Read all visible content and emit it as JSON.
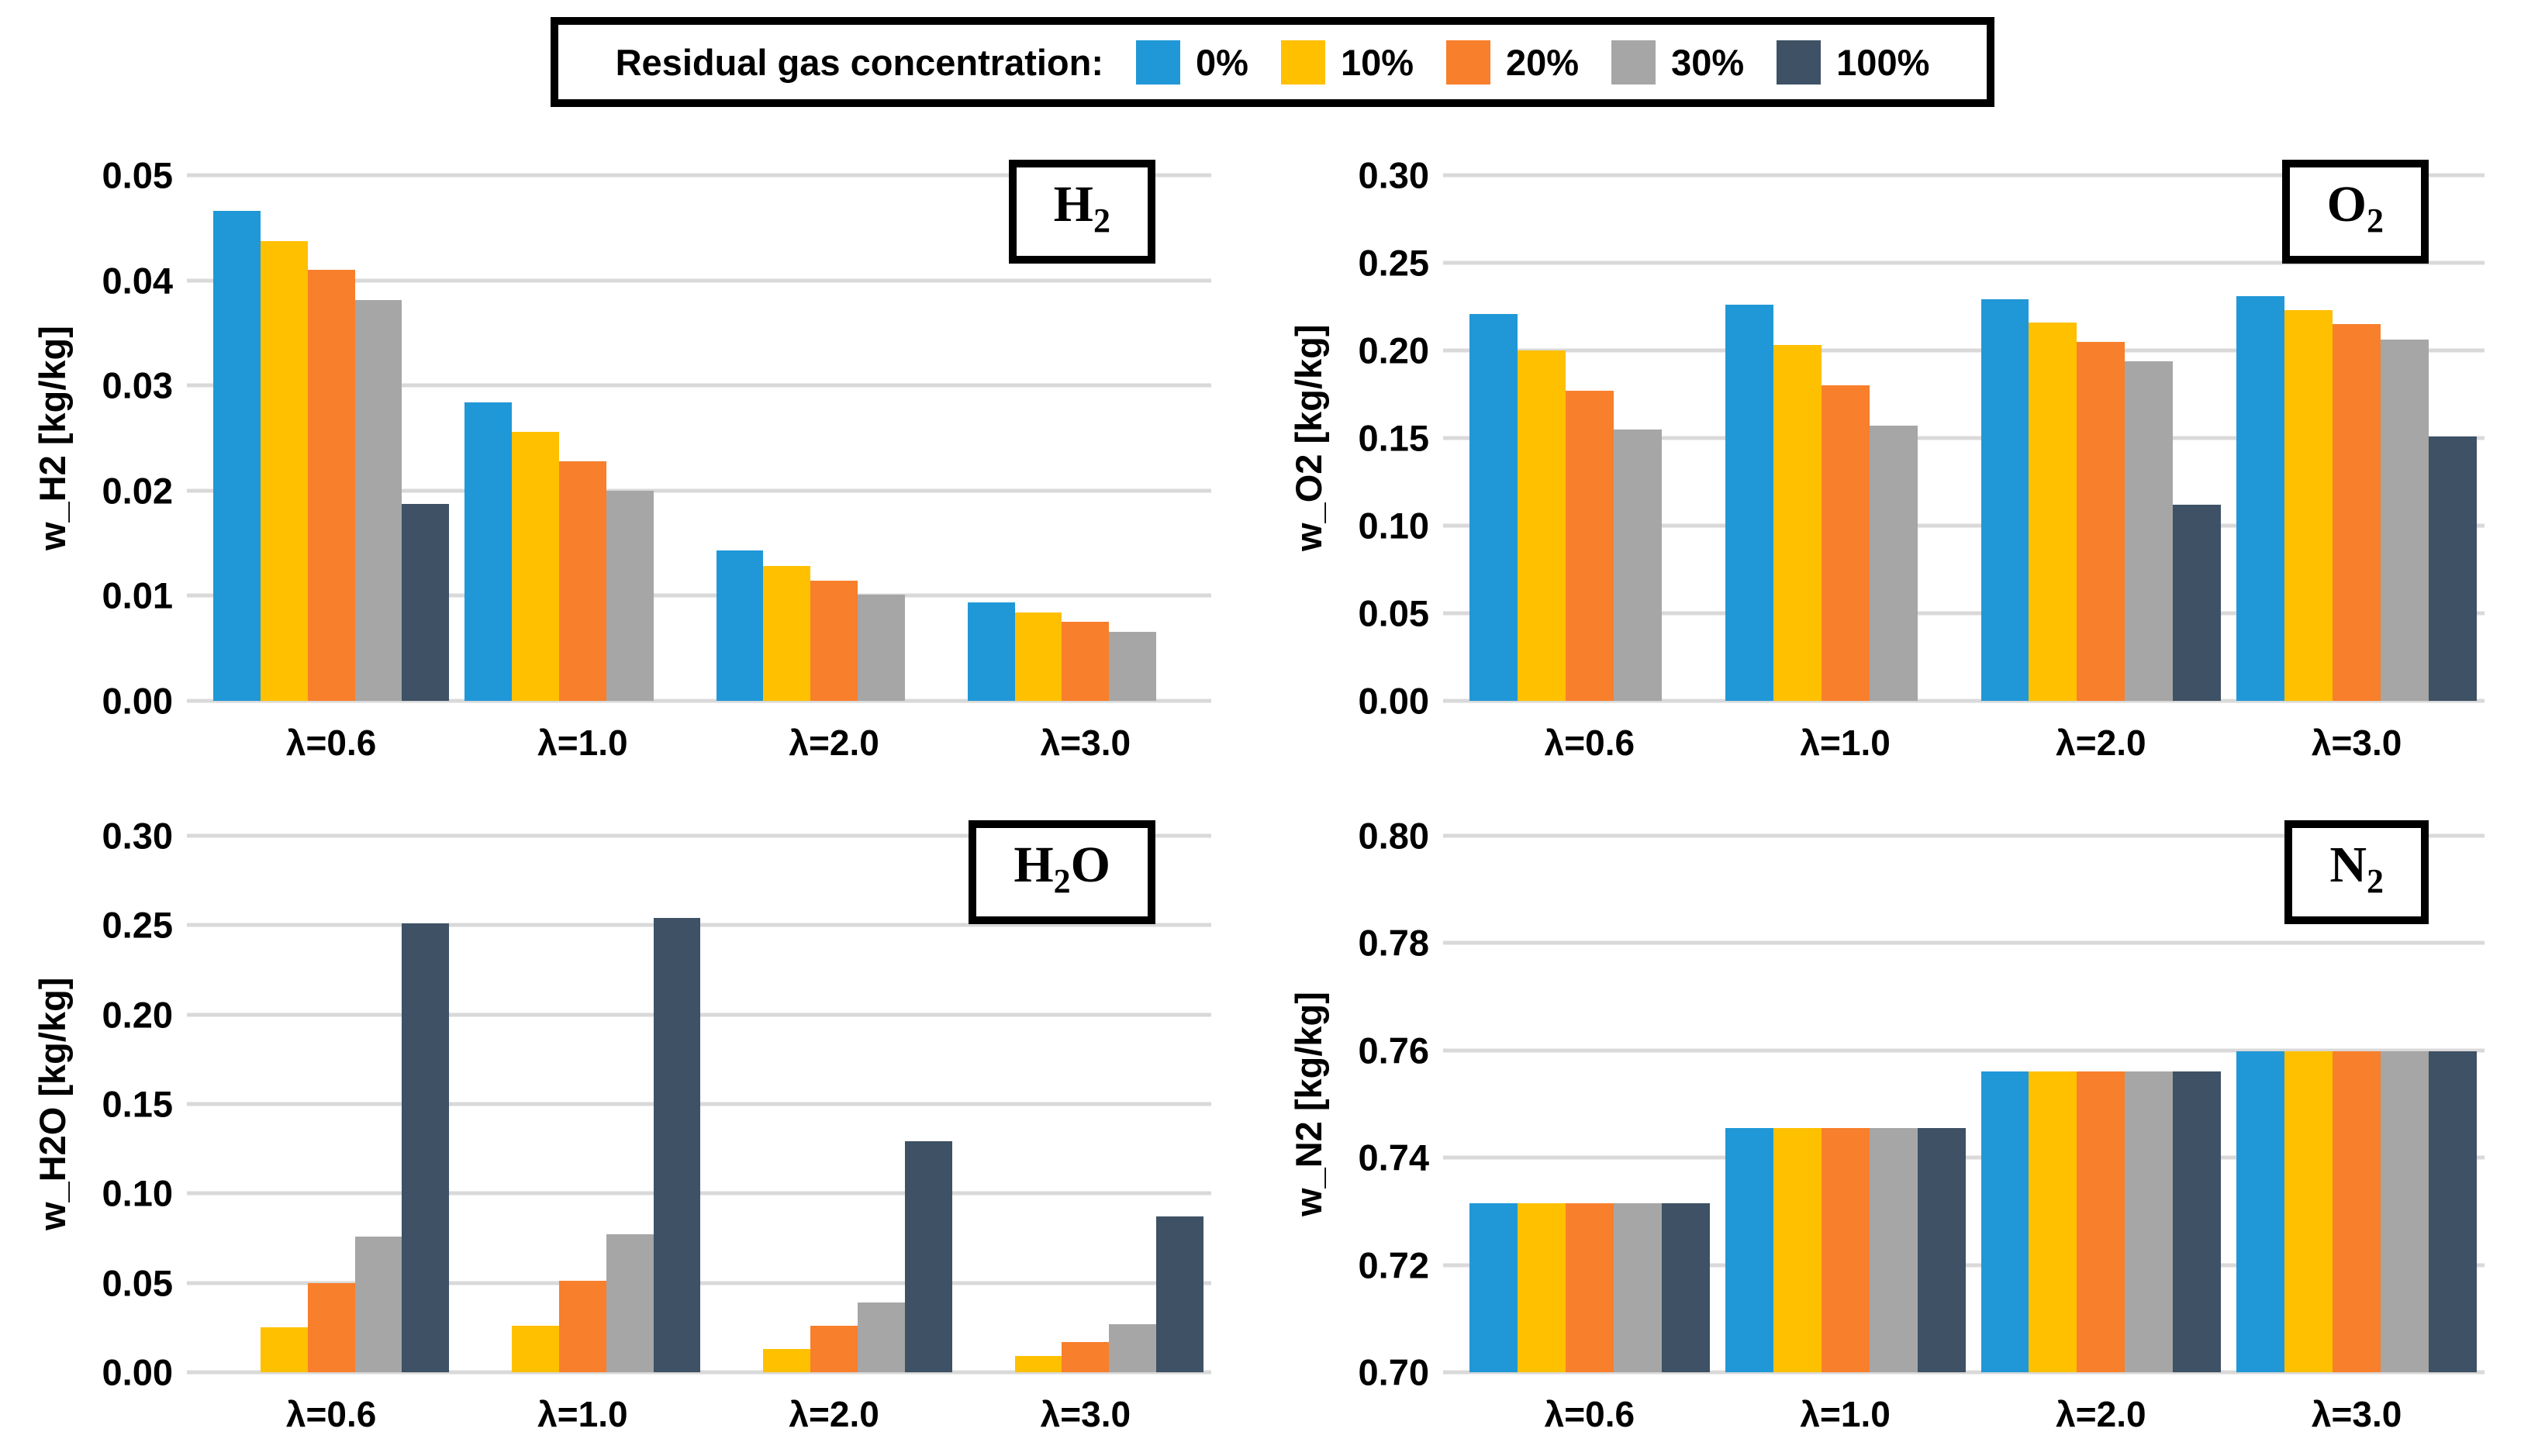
{
  "legend": {
    "title": "Residual gas concentration:",
    "items": [
      {
        "label": "0%",
        "color": "#2098D7"
      },
      {
        "label": "10%",
        "color": "#FFC000"
      },
      {
        "label": "20%",
        "color": "#F87F2C"
      },
      {
        "label": "30%",
        "color": "#A6A6A6"
      },
      {
        "label": "100%",
        "color": "#3E5165"
      }
    ]
  },
  "categories": [
    "λ=0.6",
    "λ=1.0",
    "λ=2.0",
    "λ=3.0"
  ],
  "colors": {
    "gridline": "#D9D9D9",
    "text": "#000000",
    "background": "#FFFFFF"
  },
  "chart_data": [
    {
      "type": "bar",
      "title": "H2",
      "title_parts": {
        "base": "H",
        "sub": "2",
        "suffix": ""
      },
      "ylabel": "w_H2 [kg/kg]",
      "ylim": [
        0,
        0.05
      ],
      "ytick_step": 0.01,
      "ytick_decimals": 2,
      "grid": true,
      "legend_position": "top-shared",
      "categories": [
        "λ=0.6",
        "λ=1.0",
        "λ=2.0",
        "λ=3.0"
      ],
      "series": [
        {
          "name": "0%",
          "values": [
            0.0466,
            0.0284,
            0.0143,
            0.0094
          ]
        },
        {
          "name": "10%",
          "values": [
            0.0437,
            0.0256,
            0.0128,
            0.0084
          ]
        },
        {
          "name": "20%",
          "values": [
            0.041,
            0.0228,
            0.0114,
            0.0075
          ]
        },
        {
          "name": "30%",
          "values": [
            0.0381,
            0.02,
            0.0101,
            0.0066
          ]
        },
        {
          "name": "100%",
          "values": [
            0.0187,
            0,
            0,
            0
          ]
        }
      ]
    },
    {
      "type": "bar",
      "title": "O2",
      "title_parts": {
        "base": "O",
        "sub": "2",
        "suffix": ""
      },
      "ylabel": "w_O2 [kg/kg]",
      "ylim": [
        0,
        0.3
      ],
      "ytick_step": 0.05,
      "ytick_decimals": 2,
      "grid": true,
      "legend_position": "top-shared",
      "categories": [
        "λ=0.6",
        "λ=1.0",
        "λ=2.0",
        "λ=3.0"
      ],
      "series": [
        {
          "name": "0%",
          "values": [
            0.221,
            0.226,
            0.229,
            0.231
          ]
        },
        {
          "name": "10%",
          "values": [
            0.2,
            0.203,
            0.216,
            0.223
          ]
        },
        {
          "name": "20%",
          "values": [
            0.177,
            0.18,
            0.205,
            0.215
          ]
        },
        {
          "name": "30%",
          "values": [
            0.155,
            0.157,
            0.194,
            0.206
          ]
        },
        {
          "name": "100%",
          "values": [
            0,
            0,
            0.112,
            0.151
          ]
        }
      ]
    },
    {
      "type": "bar",
      "title": "H2O",
      "title_parts": {
        "base": "H",
        "sub": "2",
        "suffix": "O"
      },
      "ylabel": "w_H2O [kg/kg]",
      "ylim": [
        0,
        0.3
      ],
      "ytick_step": 0.05,
      "ytick_decimals": 2,
      "grid": true,
      "legend_position": "top-shared",
      "categories": [
        "λ=0.6",
        "λ=1.0",
        "λ=2.0",
        "λ=3.0"
      ],
      "series": [
        {
          "name": "0%",
          "values": [
            0,
            0,
            0,
            0
          ]
        },
        {
          "name": "10%",
          "values": [
            0.025,
            0.026,
            0.013,
            0.009
          ]
        },
        {
          "name": "20%",
          "values": [
            0.05,
            0.051,
            0.026,
            0.017
          ]
        },
        {
          "name": "30%",
          "values": [
            0.076,
            0.077,
            0.039,
            0.027
          ]
        },
        {
          "name": "100%",
          "values": [
            0.251,
            0.254,
            0.129,
            0.087
          ]
        }
      ]
    },
    {
      "type": "bar",
      "title": "N2",
      "title_parts": {
        "base": "N",
        "sub": "2",
        "suffix": ""
      },
      "ylabel": "w_N2 [kg/kg]",
      "ylim": [
        0.7,
        0.8
      ],
      "ytick_step": 0.02,
      "ytick_decimals": 2,
      "grid": true,
      "legend_position": "top-shared",
      "categories": [
        "λ=0.6",
        "λ=1.0",
        "λ=2.0",
        "λ=3.0"
      ],
      "series": [
        {
          "name": "0%",
          "values": [
            0.7315,
            0.7455,
            0.756,
            0.7598
          ]
        },
        {
          "name": "10%",
          "values": [
            0.7315,
            0.7455,
            0.756,
            0.7598
          ]
        },
        {
          "name": "20%",
          "values": [
            0.7315,
            0.7455,
            0.756,
            0.7598
          ]
        },
        {
          "name": "30%",
          "values": [
            0.7315,
            0.7455,
            0.756,
            0.7598
          ]
        },
        {
          "name": "100%",
          "values": [
            0.7315,
            0.7455,
            0.756,
            0.7598
          ]
        }
      ]
    }
  ]
}
